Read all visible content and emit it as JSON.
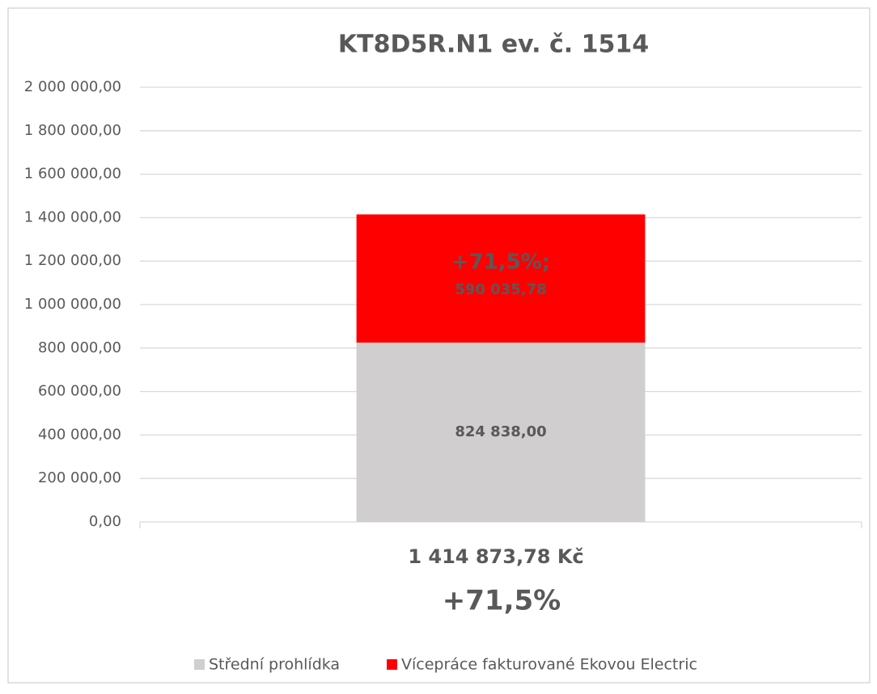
{
  "chart_data": {
    "type": "stacked_bar",
    "title": "KT8D5R.N1 ev. č. 1514",
    "categories": [
      "1 414 873,78 Kč"
    ],
    "annotations": [
      "+71,5%",
      "+71,5%;"
    ],
    "series": [
      {
        "name": "Střední prohlídka",
        "color": "#d0cece",
        "values": [
          824838
        ],
        "value_labels": [
          "824 838,00"
        ]
      },
      {
        "name": "Vícepráce fakturované Ekovou Electric",
        "color": "#ff0000",
        "values": [
          590035.78
        ],
        "value_labels": [
          "590 035,78"
        ]
      }
    ],
    "ylim": [
      0,
      2000000
    ],
    "yticks": [
      {
        "value": 0,
        "label": "0,00"
      },
      {
        "value": 200000,
        "label": "200 000,00"
      },
      {
        "value": 400000,
        "label": "400 000,00"
      },
      {
        "value": 600000,
        "label": "600 000,00"
      },
      {
        "value": 800000,
        "label": "800 000,00"
      },
      {
        "value": 1000000,
        "label": "1 000 000,00"
      },
      {
        "value": 1200000,
        "label": "1 200 000,00"
      },
      {
        "value": 1400000,
        "label": "1 400 000,00"
      },
      {
        "value": 1600000,
        "label": "1 600 000,00"
      },
      {
        "value": 1800000,
        "label": "1 800 000,00"
      },
      {
        "value": 2000000,
        "label": "2 000 000,00"
      }
    ],
    "grid": true,
    "legend": "bottom"
  }
}
